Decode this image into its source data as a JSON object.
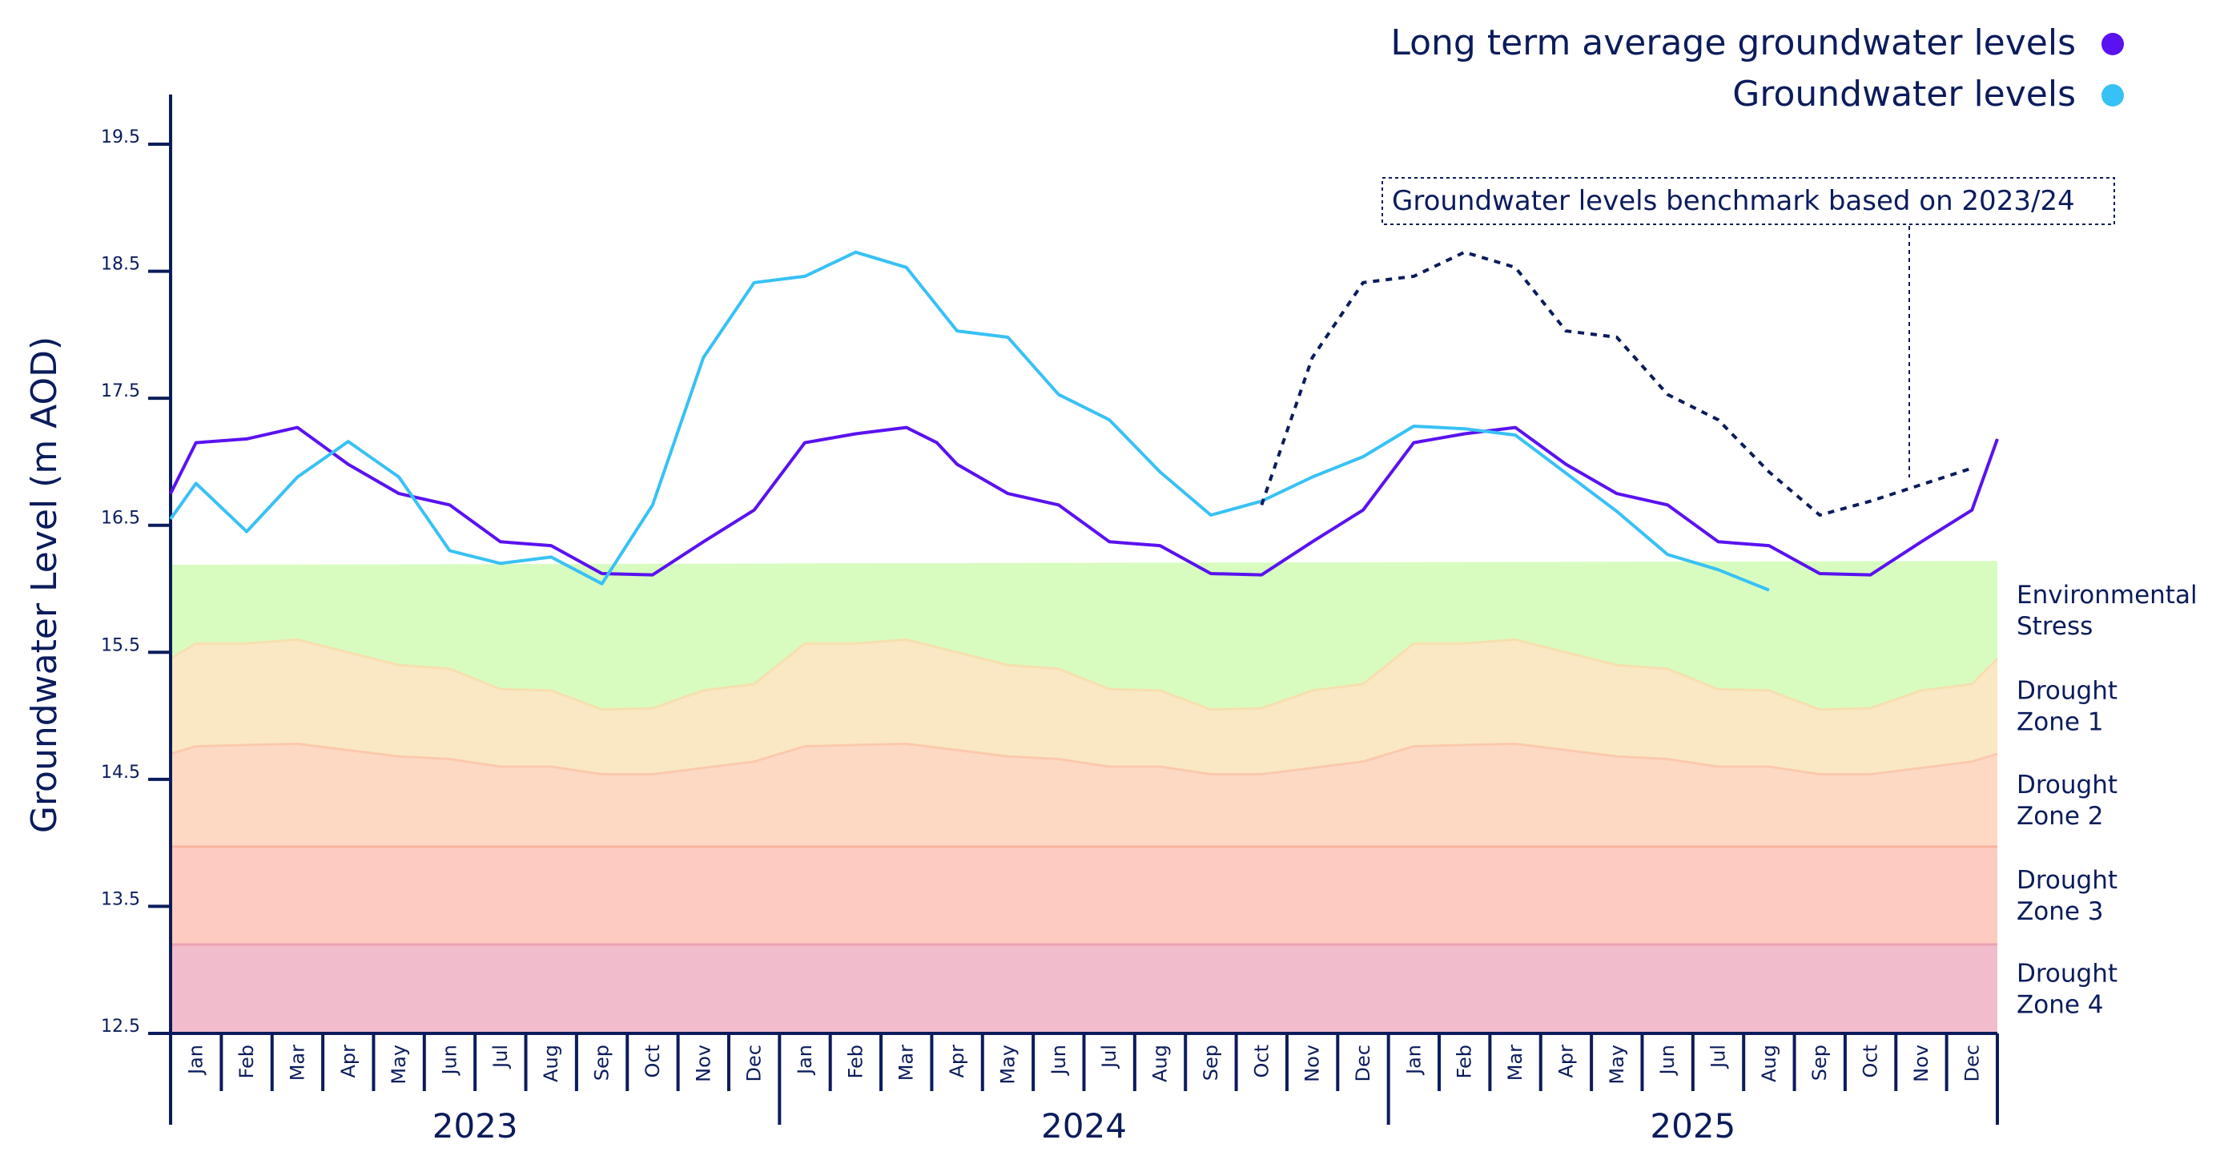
{
  "chart_data": {
    "type": "line",
    "ylabel": "Groundwater Level (m AOD)",
    "ylim": [
      12.5,
      19.5
    ],
    "y_ticks": [
      "19.5",
      "18.5",
      "17.5",
      "16.5",
      "15.5",
      "14.5",
      "13.5",
      "12.5"
    ],
    "x_months": [
      "Jan",
      "Feb",
      "Mar",
      "Apr",
      "May",
      "Jun",
      "Jul",
      "Aug",
      "Sep",
      "Oct",
      "Nov",
      "Dec",
      "Jan",
      "Feb",
      "Mar",
      "Apr",
      "May",
      "Jun",
      "Jul",
      "Aug",
      "Sep",
      "Oct",
      "Nov",
      "Dec",
      "Jan",
      "Feb",
      "Mar",
      "Apr",
      "May",
      "Jun",
      "Jul",
      "Aug",
      "Sep",
      "Oct",
      "Nov",
      "Dec"
    ],
    "x_years": [
      "2023",
      "2024",
      "2025"
    ],
    "legend": [
      {
        "label": "Long term average groundwater levels",
        "color": "#5a12f0"
      },
      {
        "label": "Groundwater levels",
        "color": "#38c1f5"
      }
    ],
    "annotation": "Groundwater levels benchmark based on 2023/24",
    "series": [
      {
        "name": "Long term average groundwater levels",
        "color": "#5a12f0",
        "points": [
          [
            -0.5,
            16.75
          ],
          [
            0,
            17.15
          ],
          [
            1,
            17.18
          ],
          [
            2,
            17.27
          ],
          [
            3,
            16.98
          ],
          [
            4,
            16.75
          ],
          [
            5,
            16.66
          ],
          [
            6,
            16.37
          ],
          [
            7,
            16.34
          ],
          [
            8,
            16.12
          ],
          [
            9,
            16.11
          ],
          [
            10,
            16.37
          ],
          [
            11,
            16.62
          ],
          [
            12,
            17.15
          ],
          [
            13,
            17.22
          ],
          [
            14,
            17.27
          ],
          [
            14.6,
            17.15
          ],
          [
            15,
            16.98
          ],
          [
            16,
            16.75
          ],
          [
            17,
            16.66
          ],
          [
            18,
            16.37
          ],
          [
            19,
            16.34
          ],
          [
            20,
            16.12
          ],
          [
            21,
            16.11
          ],
          [
            22,
            16.37
          ],
          [
            23,
            16.62
          ],
          [
            24,
            17.15
          ],
          [
            25,
            17.22
          ],
          [
            26,
            17.27
          ],
          [
            27,
            16.98
          ],
          [
            28,
            16.75
          ],
          [
            29,
            16.66
          ],
          [
            30,
            16.37
          ],
          [
            31,
            16.34
          ],
          [
            32,
            16.12
          ],
          [
            33,
            16.11
          ],
          [
            34,
            16.37
          ],
          [
            35,
            16.62
          ],
          [
            36,
            17.18
          ]
        ]
      },
      {
        "name": "Groundwater levels",
        "color": "#38c1f5",
        "points": [
          [
            -0.5,
            16.55
          ],
          [
            0,
            16.83
          ],
          [
            1,
            16.45
          ],
          [
            2,
            16.88
          ],
          [
            3,
            17.16
          ],
          [
            4,
            16.88
          ],
          [
            5,
            16.3
          ],
          [
            6,
            16.2
          ],
          [
            7,
            16.25
          ],
          [
            8,
            16.04
          ],
          [
            9,
            16.66
          ],
          [
            10,
            17.82
          ],
          [
            11,
            18.41
          ],
          [
            12,
            18.46
          ],
          [
            13,
            18.65
          ],
          [
            14,
            18.53
          ],
          [
            15,
            18.03
          ],
          [
            16,
            17.98
          ],
          [
            17,
            17.53
          ],
          [
            18,
            17.33
          ],
          [
            19,
            16.92
          ],
          [
            20,
            16.58
          ],
          [
            21,
            16.69
          ],
          [
            22,
            16.88
          ],
          [
            23,
            17.04
          ],
          [
            24,
            17.28
          ],
          [
            25,
            17.26
          ],
          [
            26,
            17.21
          ],
          [
            27,
            16.91
          ],
          [
            28,
            16.61
          ],
          [
            29,
            16.27
          ],
          [
            30,
            16.15
          ],
          [
            31,
            15.99
          ]
        ]
      },
      {
        "name": "Groundwater levels benchmark based on 2023/24",
        "color": "#0b1c5c",
        "style": "dashed",
        "points": [
          [
            21,
            16.66
          ],
          [
            22,
            17.82
          ],
          [
            23,
            18.41
          ],
          [
            24,
            18.46
          ],
          [
            25,
            18.65
          ],
          [
            26,
            18.53
          ],
          [
            27,
            18.03
          ],
          [
            28,
            17.98
          ],
          [
            29,
            17.53
          ],
          [
            30,
            17.33
          ],
          [
            31,
            16.92
          ],
          [
            32,
            16.58
          ],
          [
            33,
            16.69
          ],
          [
            34,
            16.82
          ],
          [
            35,
            16.95
          ]
        ]
      }
    ],
    "zones": [
      {
        "name": "Environmental Stress",
        "label_lines": [
          "Environmental",
          "Stress"
        ],
        "color": "#d8fcc0",
        "boundary_color": "#d8fcc0",
        "top": [
          [
            -0.5,
            16.18
          ],
          [
            36,
            16.21
          ]
        ]
      },
      {
        "name": "Drought Zone 1",
        "label_lines": [
          "Drought",
          "Zone 1"
        ],
        "color": "#f9e8c3",
        "boundary_color": "#f6dfb0",
        "top": [
          [
            -0.5,
            15.45
          ],
          [
            0,
            15.57
          ],
          [
            1,
            15.57
          ],
          [
            2,
            15.6
          ],
          [
            3,
            15.5
          ],
          [
            4,
            15.4
          ],
          [
            5,
            15.37
          ],
          [
            6,
            15.21
          ],
          [
            7,
            15.2
          ],
          [
            8,
            15.05
          ],
          [
            9,
            15.06
          ],
          [
            10,
            15.2
          ],
          [
            11,
            15.25
          ],
          [
            12,
            15.57
          ],
          [
            13,
            15.57
          ],
          [
            14,
            15.6
          ],
          [
            15,
            15.5
          ],
          [
            16,
            15.4
          ],
          [
            17,
            15.37
          ],
          [
            18,
            15.21
          ],
          [
            19,
            15.2
          ],
          [
            20,
            15.05
          ],
          [
            21,
            15.06
          ],
          [
            22,
            15.2
          ],
          [
            23,
            15.25
          ],
          [
            24,
            15.57
          ],
          [
            25,
            15.57
          ],
          [
            26,
            15.6
          ],
          [
            27,
            15.5
          ],
          [
            28,
            15.4
          ],
          [
            29,
            15.37
          ],
          [
            30,
            15.21
          ],
          [
            31,
            15.2
          ],
          [
            32,
            15.05
          ],
          [
            33,
            15.06
          ],
          [
            34,
            15.2
          ],
          [
            35,
            15.25
          ],
          [
            36,
            15.45
          ]
        ]
      },
      {
        "name": "Drought Zone 2",
        "label_lines": [
          "Drought",
          "Zone 2"
        ],
        "color": "#fdd9c4",
        "boundary_color": "#fbc9ad",
        "top": [
          [
            -0.5,
            14.7
          ],
          [
            0,
            14.76
          ],
          [
            1,
            14.77
          ],
          [
            2,
            14.78
          ],
          [
            3,
            14.73
          ],
          [
            4,
            14.68
          ],
          [
            5,
            14.66
          ],
          [
            6,
            14.6
          ],
          [
            7,
            14.6
          ],
          [
            8,
            14.54
          ],
          [
            9,
            14.54
          ],
          [
            10,
            14.59
          ],
          [
            11,
            14.64
          ],
          [
            12,
            14.76
          ],
          [
            13,
            14.77
          ],
          [
            14,
            14.78
          ],
          [
            15,
            14.73
          ],
          [
            16,
            14.68
          ],
          [
            17,
            14.66
          ],
          [
            18,
            14.6
          ],
          [
            19,
            14.6
          ],
          [
            20,
            14.54
          ],
          [
            21,
            14.54
          ],
          [
            22,
            14.59
          ],
          [
            23,
            14.64
          ],
          [
            24,
            14.76
          ],
          [
            25,
            14.77
          ],
          [
            26,
            14.78
          ],
          [
            27,
            14.73
          ],
          [
            28,
            14.68
          ],
          [
            29,
            14.66
          ],
          [
            30,
            14.6
          ],
          [
            31,
            14.6
          ],
          [
            32,
            14.54
          ],
          [
            33,
            14.54
          ],
          [
            34,
            14.59
          ],
          [
            35,
            14.64
          ],
          [
            36,
            14.7
          ]
        ]
      },
      {
        "name": "Drought Zone 3",
        "label_lines": [
          "Drought",
          "Zone 3"
        ],
        "color": "#fdcbc0",
        "boundary_color": "#f9b49e",
        "top": [
          [
            -0.5,
            13.97
          ],
          [
            36,
            13.97
          ]
        ]
      },
      {
        "name": "Drought Zone 4",
        "label_lines": [
          "Drought",
          "Zone 4"
        ],
        "color": "#f1bccb",
        "boundary_color": "#eaa2b2",
        "top": [
          [
            -0.5,
            13.2
          ],
          [
            36,
            13.2
          ]
        ]
      }
    ]
  }
}
